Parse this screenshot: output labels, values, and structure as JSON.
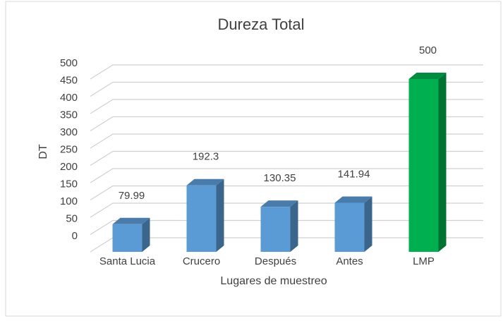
{
  "chart_data": {
    "type": "bar3d",
    "title": "Dureza Total",
    "x_label": "Lugares de muestreo",
    "y_label": "DT",
    "categories": [
      "Santa Lucia",
      "Crucero",
      "Después",
      "Antes",
      "LMP"
    ],
    "values": [
      79.99,
      192.3,
      130.35,
      141.94,
      500
    ],
    "colors": [
      "#5b9bd5",
      "#5b9bd5",
      "#5b9bd5",
      "#5b9bd5",
      "#00b050"
    ],
    "ylim": [
      0,
      500
    ],
    "yticks": [
      0,
      50,
      100,
      150,
      200,
      250,
      300,
      350,
      400,
      450,
      500
    ],
    "grid": true
  }
}
